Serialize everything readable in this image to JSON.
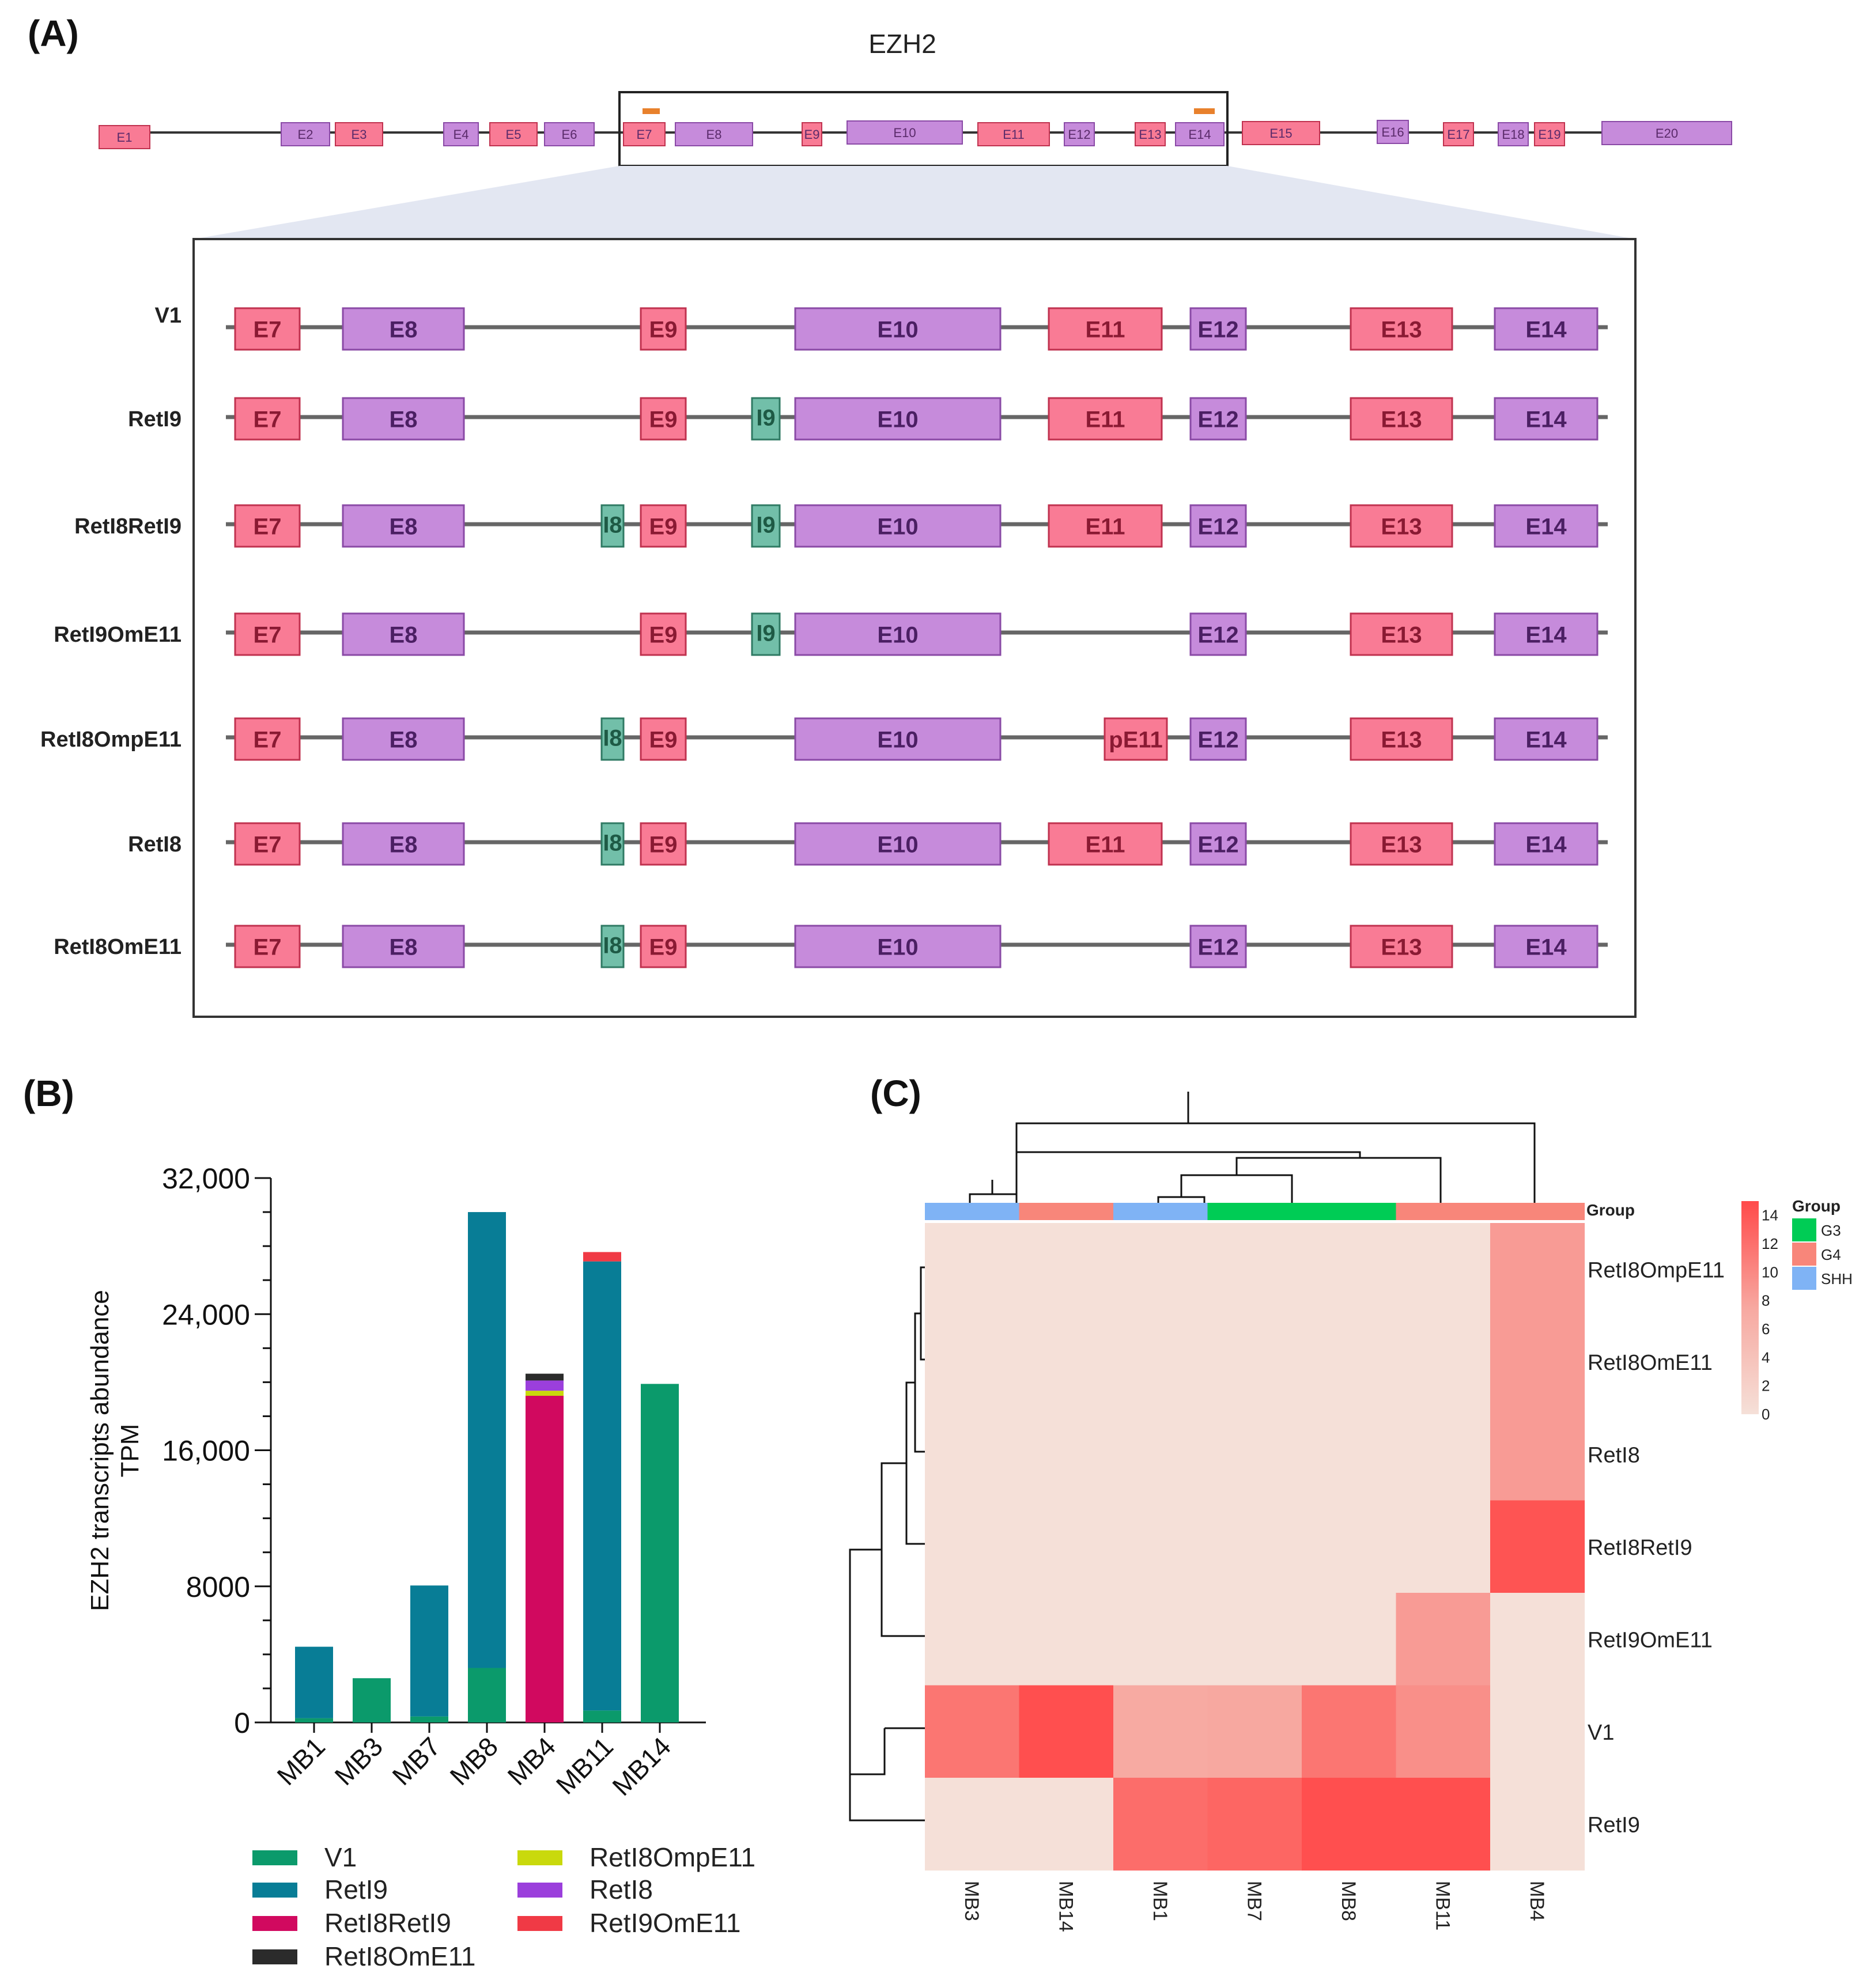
{
  "panels": {
    "a": "(A)",
    "b": "(B)",
    "c": "(C)"
  },
  "gene": {
    "title": "EZH2",
    "exons": [
      {
        "label": "E1",
        "kind": "pink"
      },
      {
        "label": "E2",
        "kind": "purple"
      },
      {
        "label": "E3",
        "kind": "pink"
      },
      {
        "label": "E4",
        "kind": "purple"
      },
      {
        "label": "E5",
        "kind": "pink"
      },
      {
        "label": "E6",
        "kind": "purple"
      },
      {
        "label": "E7",
        "kind": "pink"
      },
      {
        "label": "E8",
        "kind": "purple"
      },
      {
        "label": "E9",
        "kind": "pink"
      },
      {
        "label": "E10",
        "kind": "purple"
      },
      {
        "label": "E11",
        "kind": "pink"
      },
      {
        "label": "E12",
        "kind": "purple"
      },
      {
        "label": "E13",
        "kind": "pink"
      },
      {
        "label": "E14",
        "kind": "purple"
      },
      {
        "label": "E15",
        "kind": "pink"
      },
      {
        "label": "E16",
        "kind": "purple"
      },
      {
        "label": "E17",
        "kind": "pink"
      },
      {
        "label": "E18",
        "kind": "purple"
      },
      {
        "label": "E19",
        "kind": "pink"
      },
      {
        "label": "E20",
        "kind": "purple"
      }
    ]
  },
  "transcripts": [
    {
      "name": "V1",
      "blocks": [
        "E7",
        "E8",
        "E9",
        "E10",
        "E11",
        "E12",
        "E13",
        "E14"
      ]
    },
    {
      "name": "RetI9",
      "blocks": [
        "E7",
        "E8",
        "E9",
        "I9",
        "E10",
        "E11",
        "E12",
        "E13",
        "E14"
      ]
    },
    {
      "name": "RetI8RetI9",
      "blocks": [
        "E7",
        "E8",
        "I8",
        "E9",
        "I9",
        "E10",
        "E11",
        "E12",
        "E13",
        "E14"
      ]
    },
    {
      "name": "RetI9OmE11",
      "blocks": [
        "E7",
        "E8",
        "E9",
        "I9",
        "E10",
        "E12",
        "E13",
        "E14"
      ]
    },
    {
      "name": "RetI8OmpE11",
      "blocks": [
        "E7",
        "E8",
        "I8",
        "E9",
        "E10",
        "pE11",
        "E12",
        "E13",
        "E14"
      ]
    },
    {
      "name": "RetI8",
      "blocks": [
        "E7",
        "E8",
        "I8",
        "E9",
        "E10",
        "E11",
        "E12",
        "E13",
        "E14"
      ]
    },
    {
      "name": "RetI8OmE11",
      "blocks": [
        "E7",
        "E8",
        "I8",
        "E9",
        "E10",
        "E12",
        "E13",
        "E14"
      ]
    }
  ],
  "colors": {
    "exon_pink": "#f97b95",
    "exon_pink_stroke": "#c0324f",
    "exon_purple": "#c68bdb",
    "exon_purple_stroke": "#8a4aa6",
    "intron_green": "#72bfa9",
    "intron_green_stroke": "#2f7a63",
    "marker_orange": "#e8812c",
    "V1": "#0b9a6b",
    "RetI9": "#087d96",
    "RetI8RetI9": "#d1095f",
    "RetI8OmE11": "#2b2b2b",
    "RetI8OmpE11": "#c9d90c",
    "RetI8": "#9b3fdc",
    "RetI9OmE11": "#f03a45",
    "G3": "#00cc55",
    "G4": "#f8867a",
    "SHH": "#7fb3f5"
  },
  "chart_data": [
    {
      "type": "bar",
      "stacked": true,
      "title": "",
      "ylabel": "EZH2 transcripts abundance TPM",
      "ylabel_lines": [
        "EZH2 transcripts abundance",
        "TPM"
      ],
      "ylim": [
        0,
        32000
      ],
      "yticks": [
        "0",
        "8000",
        "16,000",
        "24,000",
        "32,000"
      ],
      "ytick_values": [
        0,
        8000,
        16000,
        24000,
        32000
      ],
      "categories": [
        "MB1",
        "MB3",
        "MB7",
        "MB8",
        "MB4",
        "MB11",
        "MB14"
      ],
      "series": [
        {
          "name": "V1",
          "values": [
            250,
            2600,
            350,
            3200,
            0,
            700,
            19900
          ]
        },
        {
          "name": "RetI9",
          "values": [
            4200,
            0,
            7700,
            26800,
            0,
            26400,
            0
          ]
        },
        {
          "name": "RetI8RetI9",
          "values": [
            0,
            0,
            0,
            0,
            19200,
            0,
            0
          ]
        },
        {
          "name": "RetI8OmpE11",
          "values": [
            0,
            0,
            0,
            0,
            300,
            0,
            0
          ]
        },
        {
          "name": "RetI8",
          "values": [
            0,
            0,
            0,
            0,
            600,
            0,
            0
          ]
        },
        {
          "name": "RetI8OmE11",
          "values": [
            0,
            0,
            0,
            0,
            400,
            0,
            0
          ]
        },
        {
          "name": "RetI9OmE11",
          "values": [
            0,
            0,
            0,
            0,
            0,
            550,
            0
          ]
        }
      ],
      "legend": [
        "V1",
        "RetI9",
        "RetI8RetI9",
        "RetI8OmE11",
        "RetI8OmpE11",
        "RetI8",
        "RetI9OmE11"
      ]
    },
    {
      "type": "heatmap",
      "columns": [
        "MB3",
        "MB14",
        "MB1",
        "MB7",
        "MB8",
        "MB11",
        "MB4"
      ],
      "rows": [
        "RetI8OmpE11",
        "RetI8OmE11",
        "RetI8",
        "RetI8RetI9",
        "RetI9OmE11",
        "V1",
        "RetI9"
      ],
      "values": [
        [
          0,
          0,
          0,
          0,
          0,
          0,
          8.5
        ],
        [
          0,
          0,
          0,
          0,
          0,
          0,
          8.5
        ],
        [
          0,
          0,
          0,
          0,
          0,
          0,
          8.5
        ],
        [
          0,
          0,
          0,
          0,
          0,
          0,
          14.2
        ],
        [
          0,
          0,
          0,
          0,
          0,
          8.5,
          0
        ],
        [
          11.5,
          14.6,
          7.2,
          7.5,
          11.5,
          9.5,
          0
        ],
        [
          0,
          0,
          12.2,
          12.8,
          14.6,
          14.6,
          0
        ]
      ],
      "group_label": "Group",
      "column_groups": [
        "SHH",
        "G4",
        "SHH",
        "G3",
        "G3",
        "G4",
        "G4"
      ],
      "groups": [
        "G3",
        "G4",
        "SHH"
      ],
      "colorbar_ticks": [
        "0",
        "2",
        "4",
        "6",
        "8",
        "10",
        "12",
        "14"
      ],
      "colorbar_range": [
        0,
        15
      ]
    }
  ]
}
